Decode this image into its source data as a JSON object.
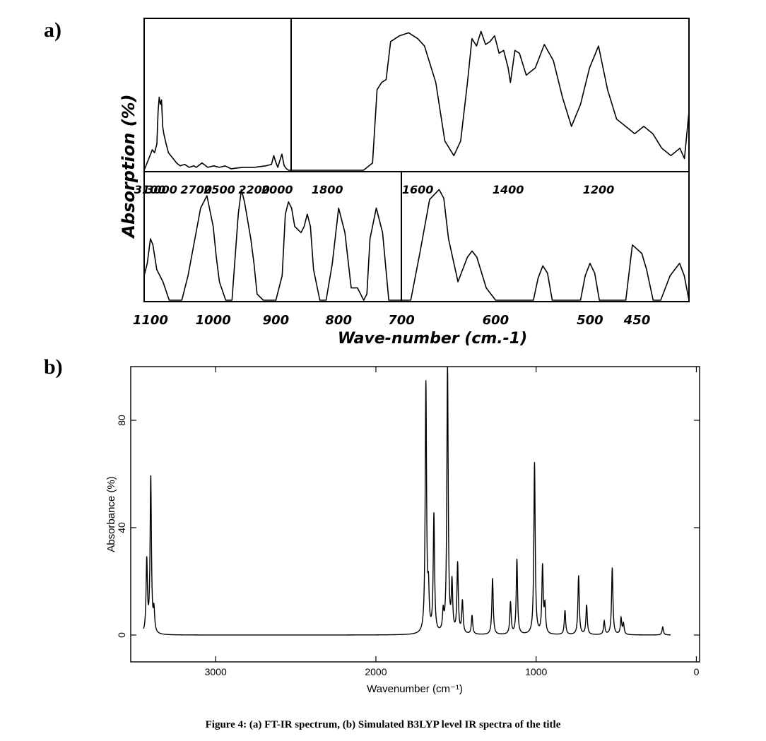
{
  "panel_labels": {
    "a": "a)",
    "b": "b)"
  },
  "caption": "Figure 4: (a) FT-IR spectrum, (b) Simulated B3LYP level IR spectra of the title",
  "chart_data": [
    {
      "id": "a",
      "type": "line",
      "ylabel": "Absorption (%)",
      "xlabel": "Wave-number (cm.-1)",
      "colors": {
        "line": "#000000",
        "background": "#ffffff"
      },
      "top_strip": {
        "segments": [
          {
            "name": "3200-2000",
            "x_range": [
              3150,
              1880
            ],
            "tick_labels": [
              {
                "label": "3100",
                "x": 3100
              },
              {
                "label": "3000",
                "x": 3000
              },
              {
                "label": "2700",
                "x": 2700
              },
              {
                "label": "2500",
                "x": 2500
              },
              {
                "label": "2200",
                "x": 2200
              },
              {
                "label": "2000",
                "x": 2000
              }
            ],
            "x": [
              3150,
              3110,
              3080,
              3060,
              3040,
              3030,
              3020,
              3010,
              3000,
              2990,
              2980,
              2960,
              2940,
              2900,
              2870,
              2840,
              2800,
              2760,
              2720,
              2700,
              2650,
              2600,
              2550,
              2500,
              2450,
              2400,
              2300,
              2200,
              2100,
              2050,
              2030,
              2010,
              1995,
              1980,
              1960,
              1940,
              1920,
              1900,
              1880
            ],
            "y": [
              0,
              8,
              14,
              12,
              18,
              40,
              50,
              45,
              48,
              30,
              25,
              18,
              12,
              8,
              5,
              3,
              4,
              2,
              3,
              2,
              5,
              2,
              3,
              2,
              3,
              1,
              2,
              2,
              3,
              4,
              10,
              5,
              2,
              6,
              11,
              3,
              1,
              0,
              0
            ]
          },
          {
            "name": "1800-1000",
            "x_range": [
              1880,
              1000
            ],
            "tick_labels": [
              {
                "label": "1800",
                "x": 1800
              },
              {
                "label": "1600",
                "x": 1600
              },
              {
                "label": "1400",
                "x": 1400
              },
              {
                "label": "1200",
                "x": 1200
              }
            ],
            "x": [
              1880,
              1720,
              1700,
              1690,
              1680,
              1670,
              1660,
              1640,
              1620,
              1600,
              1585,
              1560,
              1540,
              1520,
              1505,
              1490,
              1480,
              1470,
              1460,
              1450,
              1440,
              1430,
              1420,
              1410,
              1400,
              1395,
              1385,
              1375,
              1360,
              1340,
              1320,
              1300,
              1280,
              1260,
              1240,
              1220,
              1200,
              1180,
              1160,
              1140,
              1120,
              1100,
              1080,
              1060,
              1040,
              1020,
              1010,
              1000
            ],
            "y": [
              0,
              0,
              5,
              55,
              60,
              62,
              88,
              92,
              94,
              90,
              85,
              60,
              20,
              10,
              20,
              60,
              90,
              85,
              95,
              86,
              88,
              92,
              80,
              82,
              70,
              60,
              82,
              80,
              65,
              70,
              86,
              75,
              50,
              30,
              45,
              70,
              85,
              55,
              35,
              30,
              25,
              30,
              25,
              15,
              10,
              15,
              8,
              40
            ]
          }
        ]
      },
      "bottom_strip": {
        "segments": [
          {
            "name": "1100-700",
            "x_range": [
              1110,
              700
            ],
            "tick_labels": [
              {
                "label": "1100",
                "x": 1100
              },
              {
                "label": "1000",
                "x": 1000
              },
              {
                "label": "900",
                "x": 900
              },
              {
                "label": "800",
                "x": 800
              }
            ],
            "x": [
              1110,
              1105,
              1100,
              1096,
              1090,
              1080,
              1070,
              1050,
              1040,
              1020,
              1010,
              1000,
              995,
              990,
              980,
              970,
              960,
              955,
              950,
              940,
              935,
              930,
              920,
              910,
              900,
              890,
              885,
              880,
              875,
              870,
              860,
              855,
              850,
              845,
              840,
              830,
              825,
              820,
              810,
              800,
              790,
              780,
              770,
              760,
              755,
              750,
              740,
              730,
              720,
              700
            ],
            "y": [
              20,
              30,
              50,
              45,
              25,
              15,
              0,
              0,
              20,
              75,
              85,
              60,
              35,
              15,
              0,
              0,
              70,
              90,
              80,
              50,
              30,
              5,
              0,
              0,
              0,
              20,
              70,
              80,
              75,
              60,
              55,
              60,
              70,
              60,
              25,
              0,
              0,
              0,
              30,
              75,
              55,
              10,
              10,
              0,
              5,
              50,
              75,
              55,
              0,
              0
            ]
          },
          {
            "name": "700-400",
            "x_range": [
              700,
              395
            ],
            "tick_labels": [
              {
                "label": "700",
                "x": 700
              },
              {
                "label": "600",
                "x": 600
              },
              {
                "label": "500",
                "x": 500
              },
              {
                "label": "450",
                "x": 450
              }
            ],
            "x": [
              700,
              690,
              680,
              670,
              660,
              655,
              650,
              640,
              630,
              625,
              620,
              610,
              600,
              560,
              555,
              550,
              545,
              540,
              530,
              510,
              505,
              500,
              495,
              490,
              480,
              462,
              455,
              445,
              440,
              433,
              425,
              415,
              405,
              400,
              395
            ],
            "y": [
              0,
              0,
              40,
              82,
              90,
              83,
              50,
              15,
              35,
              40,
              35,
              10,
              0,
              0,
              18,
              28,
              22,
              0,
              0,
              0,
              20,
              30,
              22,
              0,
              0,
              0,
              45,
              38,
              25,
              0,
              0,
              20,
              30,
              20,
              0
            ]
          }
        ]
      }
    },
    {
      "id": "b",
      "type": "line",
      "ylabel": "Absorbance (%)",
      "xlabel": "Wavenumber (cm⁻¹)",
      "xlim": [
        3530,
        -20
      ],
      "ylim": [
        -10,
        100
      ],
      "xticks": [
        3000,
        2000,
        1000,
        0
      ],
      "yticks": [
        0,
        40,
        80
      ],
      "peak_width": 5,
      "peaks": [
        {
          "x": 3430,
          "y": 27
        },
        {
          "x": 3405,
          "y": 58
        },
        {
          "x": 3385,
          "y": 8
        },
        {
          "x": 1688,
          "y": 93
        },
        {
          "x": 1672,
          "y": 14
        },
        {
          "x": 1638,
          "y": 44
        },
        {
          "x": 1580,
          "y": 7
        },
        {
          "x": 1553,
          "y": 100
        },
        {
          "x": 1525,
          "y": 18
        },
        {
          "x": 1490,
          "y": 26
        },
        {
          "x": 1460,
          "y": 12
        },
        {
          "x": 1400,
          "y": 7
        },
        {
          "x": 1272,
          "y": 21
        },
        {
          "x": 1160,
          "y": 12
        },
        {
          "x": 1120,
          "y": 28
        },
        {
          "x": 1010,
          "y": 64
        },
        {
          "x": 960,
          "y": 25
        },
        {
          "x": 945,
          "y": 10
        },
        {
          "x": 820,
          "y": 9
        },
        {
          "x": 735,
          "y": 22
        },
        {
          "x": 685,
          "y": 11
        },
        {
          "x": 575,
          "y": 5
        },
        {
          "x": 525,
          "y": 25
        },
        {
          "x": 470,
          "y": 6
        },
        {
          "x": 455,
          "y": 4
        },
        {
          "x": 210,
          "y": 3
        }
      ]
    }
  ]
}
